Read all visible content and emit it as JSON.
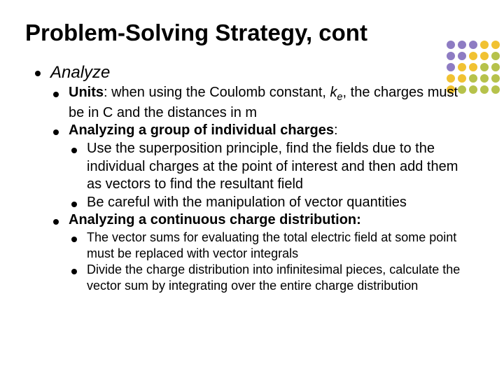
{
  "title": "Problem-Solving Strategy, cont",
  "deco_colors": {
    "purple": "#8e7cc3",
    "gold": "#f1c232",
    "olive": "#b6c24b"
  },
  "analyze_label": "Analyze",
  "units": {
    "label": "Units",
    "pre": ": when using the Coulomb constant, ",
    "k": "k",
    "ksub": "e",
    "post": ", the charges must be in C and the distances in m"
  },
  "group": {
    "heading": "Analyzing a group of individual charges",
    "colon": ":",
    "sub1": "Use the superposition principle, find the fields due to the individual charges at the point of interest and then add them as vectors to find the resultant field",
    "sub2": "Be careful with the manipulation of vector quantities"
  },
  "continuous": {
    "heading": "Analyzing a continuous charge distribution:",
    "sub1": "The vector sums for evaluating the total electric field at some point must be replaced with vector integrals",
    "sub2": "Divide the charge distribution into infinitesimal pieces, calculate the vector sum by integrating over the entire charge distribution"
  }
}
